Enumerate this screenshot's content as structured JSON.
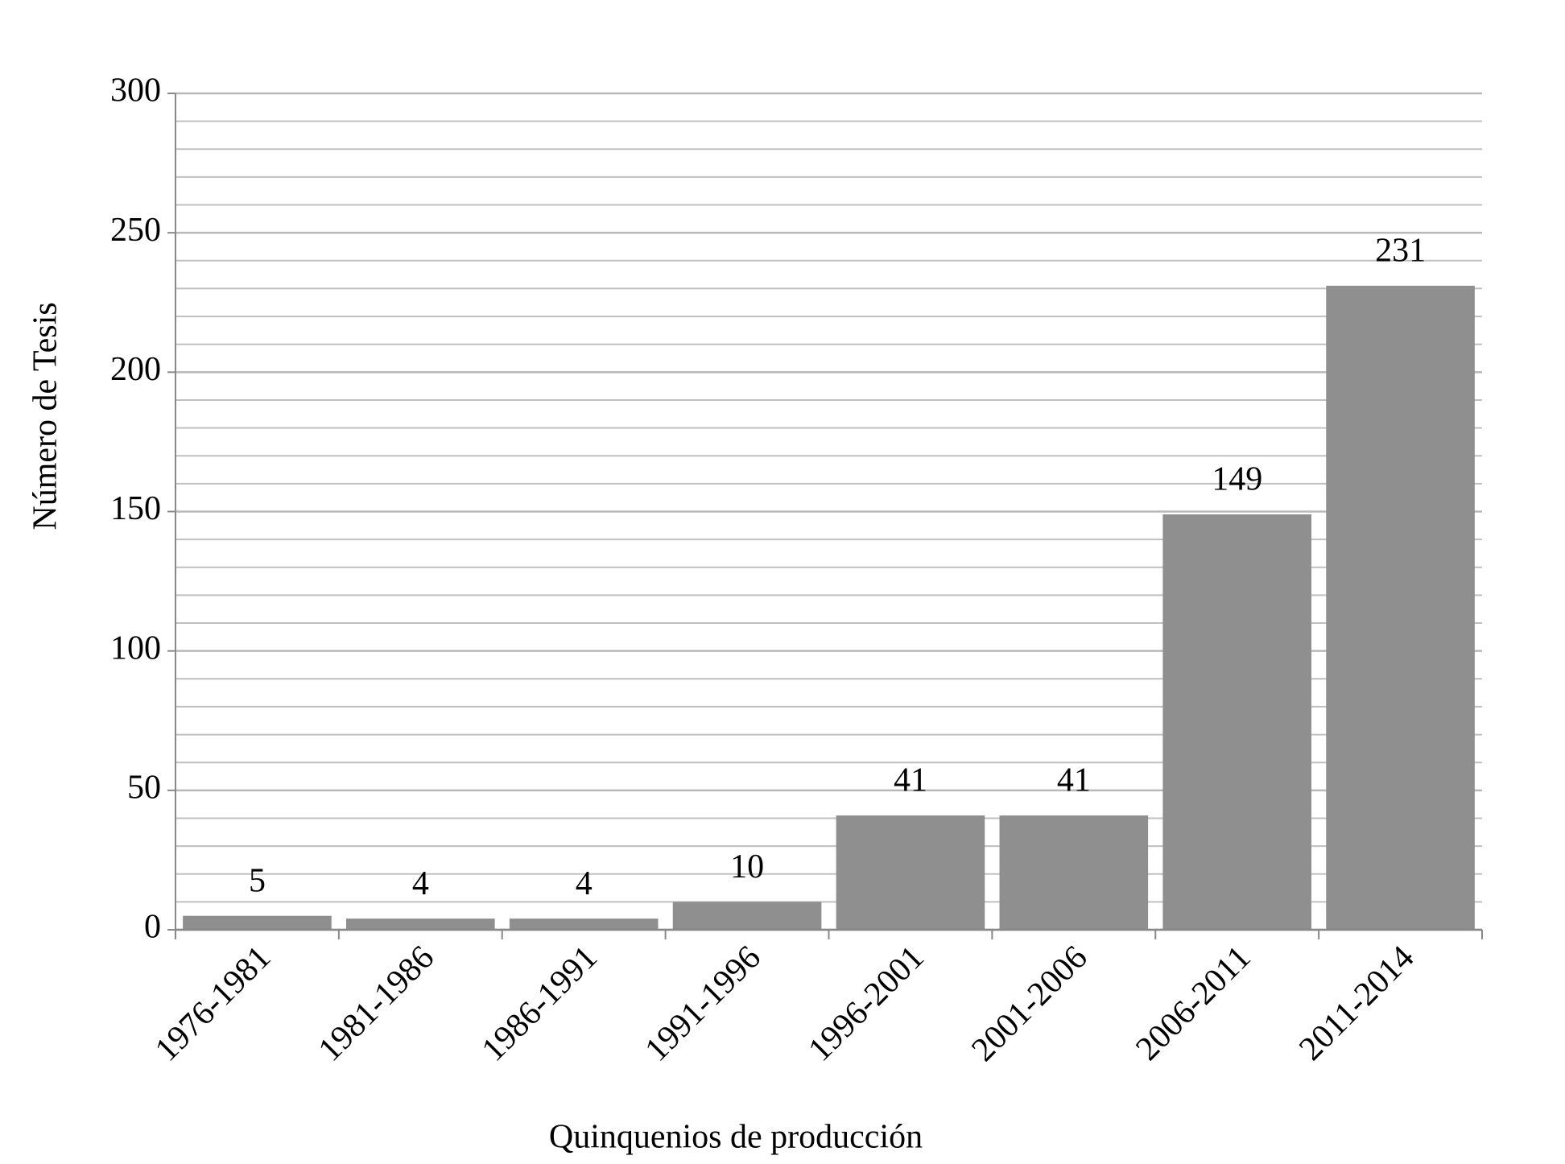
{
  "chart_data": {
    "type": "bar",
    "x_label": "Quinquenios de producción",
    "y_label": "Número de Tesis",
    "categories": [
      "1976-1981",
      "1981-1986",
      "1986-1991",
      "1991-1996",
      "1996-2001",
      "2001-2006",
      "2006-2011",
      "2011-2014"
    ],
    "values": [
      5,
      4,
      4,
      10,
      41,
      41,
      149,
      231
    ],
    "color": "#8f8f8f",
    "ylim": [
      0,
      300
    ],
    "yticks": [
      0,
      50,
      100,
      150,
      200,
      250,
      300
    ],
    "minor_yticks": [
      10,
      20,
      30,
      40,
      60,
      70,
      80,
      90,
      110,
      120,
      130,
      140,
      160,
      170,
      180,
      190,
      210,
      220,
      230,
      240,
      260,
      270,
      280,
      290
    ],
    "grid": true
  }
}
